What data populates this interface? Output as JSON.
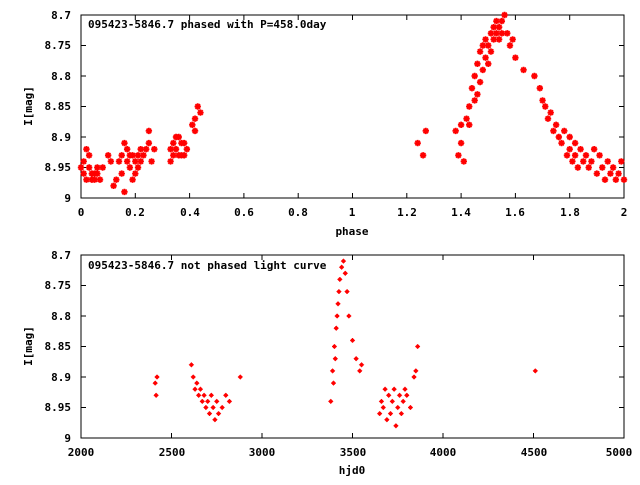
{
  "colors": {
    "points": "#ff0000",
    "axes": "#000000",
    "background": "#ffffff"
  },
  "chart_data": [
    {
      "type": "scatter",
      "title": "095423-5846.7 phased with P=458.0day",
      "xlabel": "phase",
      "ylabel": "I[mag]",
      "xlim": [
        0,
        2
      ],
      "ylim": [
        9,
        8.7
      ],
      "y_inverted": true,
      "grid": false,
      "legend": "none",
      "marker": "star",
      "xticks": [
        "0",
        "0.2",
        "0.4",
        "0.6",
        "0.8",
        "1",
        "1.2",
        "1.4",
        "1.6",
        "1.8",
        "2"
      ],
      "yticks": [
        "8.7",
        "8.75",
        "8.8",
        "8.85",
        "8.9",
        "8.95",
        "9"
      ],
      "x": [
        0.0,
        0.01,
        0.01,
        0.02,
        0.02,
        0.03,
        0.03,
        0.04,
        0.04,
        0.05,
        0.05,
        0.06,
        0.06,
        0.07,
        0.08,
        0.1,
        0.11,
        0.12,
        0.13,
        0.14,
        0.15,
        0.15,
        0.16,
        0.16,
        0.17,
        0.17,
        0.18,
        0.18,
        0.19,
        0.19,
        0.2,
        0.2,
        0.21,
        0.21,
        0.22,
        0.22,
        0.23,
        0.24,
        0.25,
        0.25,
        0.26,
        0.27,
        0.33,
        0.33,
        0.34,
        0.34,
        0.35,
        0.35,
        0.36,
        0.36,
        0.37,
        0.37,
        0.38,
        0.38,
        0.39,
        0.41,
        0.42,
        0.42,
        0.43,
        0.44,
        1.24,
        1.26,
        1.27,
        1.38,
        1.39,
        1.4,
        1.4,
        1.41,
        1.42,
        1.43,
        1.43,
        1.44,
        1.45,
        1.45,
        1.46,
        1.46,
        1.47,
        1.47,
        1.48,
        1.48,
        1.49,
        1.49,
        1.5,
        1.5,
        1.51,
        1.51,
        1.52,
        1.52,
        1.53,
        1.53,
        1.54,
        1.54,
        1.55,
        1.55,
        1.56,
        1.57,
        1.58,
        1.59,
        1.6,
        1.63,
        1.67,
        1.69,
        1.7,
        1.71,
        1.72,
        1.73,
        1.74,
        1.75,
        1.76,
        1.77,
        1.78,
        1.79,
        1.8,
        1.8,
        1.81,
        1.82,
        1.82,
        1.83,
        1.84,
        1.85,
        1.86,
        1.87,
        1.88,
        1.89,
        1.9,
        1.91,
        1.92,
        1.93,
        1.94,
        1.95,
        1.96,
        1.97,
        1.98,
        1.99,
        2.0
      ],
      "y": [
        8.95,
        8.94,
        8.96,
        8.92,
        8.97,
        8.93,
        8.95,
        8.97,
        8.96,
        8.96,
        8.97,
        8.95,
        8.96,
        8.97,
        8.95,
        8.93,
        8.94,
        8.98,
        8.97,
        8.94,
        8.93,
        8.96,
        8.91,
        8.99,
        8.92,
        8.94,
        8.93,
        8.95,
        8.97,
        8.93,
        8.94,
        8.96,
        8.93,
        8.95,
        8.92,
        8.94,
        8.93,
        8.92,
        8.89,
        8.91,
        8.94,
        8.92,
        8.94,
        8.92,
        8.93,
        8.91,
        8.92,
        8.9,
        8.93,
        8.9,
        8.91,
        8.93,
        8.93,
        8.91,
        8.92,
        8.88,
        8.89,
        8.87,
        8.85,
        8.86,
        8.91,
        8.93,
        8.89,
        8.89,
        8.93,
        8.88,
        8.91,
        8.94,
        8.87,
        8.88,
        8.85,
        8.82,
        8.84,
        8.8,
        8.83,
        8.78,
        8.81,
        8.76,
        8.79,
        8.75,
        8.77,
        8.74,
        8.78,
        8.75,
        8.73,
        8.76,
        8.72,
        8.74,
        8.73,
        8.71,
        8.74,
        8.72,
        8.73,
        8.71,
        8.7,
        8.73,
        8.75,
        8.74,
        8.77,
        8.79,
        8.8,
        8.82,
        8.84,
        8.85,
        8.87,
        8.86,
        8.89,
        8.88,
        8.9,
        8.91,
        8.89,
        8.93,
        8.9,
        8.92,
        8.94,
        8.91,
        8.93,
        8.95,
        8.92,
        8.94,
        8.93,
        8.95,
        8.94,
        8.92,
        8.96,
        8.93,
        8.95,
        8.97,
        8.94,
        8.96,
        8.95,
        8.97,
        8.96,
        8.94,
        8.97
      ]
    },
    {
      "type": "scatter",
      "title": "095423-5846.7 not phased light curve",
      "xlabel": "hjd0",
      "ylabel": "I[mag]",
      "xlim": [
        2000,
        5000
      ],
      "ylim": [
        9,
        8.7
      ],
      "y_inverted": true,
      "grid": false,
      "legend": "none",
      "marker": "diamond",
      "xticks": [
        "2000",
        "2500",
        "3000",
        "3500",
        "4000",
        "4500",
        "5000"
      ],
      "yticks": [
        "8.7",
        "8.75",
        "8.8",
        "8.85",
        "8.9",
        "8.95",
        "9"
      ],
      "x": [
        2410,
        2415,
        2420,
        2610,
        2620,
        2630,
        2640,
        2650,
        2660,
        2670,
        2680,
        2690,
        2700,
        2710,
        2720,
        2730,
        2740,
        2750,
        2760,
        2780,
        2800,
        2820,
        2880,
        3380,
        3390,
        3395,
        3400,
        3405,
        3410,
        3415,
        3420,
        3425,
        3430,
        3440,
        3450,
        3460,
        3470,
        3480,
        3500,
        3520,
        3540,
        3550,
        3650,
        3660,
        3670,
        3680,
        3690,
        3700,
        3710,
        3720,
        3730,
        3740,
        3750,
        3760,
        3770,
        3780,
        3790,
        3800,
        3820,
        3840,
        3850,
        3860,
        4510
      ],
      "y": [
        8.91,
        8.93,
        8.9,
        8.88,
        8.9,
        8.92,
        8.91,
        8.93,
        8.92,
        8.94,
        8.93,
        8.95,
        8.94,
        8.96,
        8.93,
        8.95,
        8.97,
        8.94,
        8.96,
        8.95,
        8.93,
        8.94,
        8.9,
        8.94,
        8.89,
        8.91,
        8.85,
        8.87,
        8.82,
        8.8,
        8.78,
        8.76,
        8.74,
        8.72,
        8.71,
        8.73,
        8.76,
        8.8,
        8.84,
        8.87,
        8.89,
        8.88,
        8.96,
        8.94,
        8.95,
        8.92,
        8.97,
        8.93,
        8.96,
        8.94,
        8.92,
        8.98,
        8.95,
        8.93,
        8.96,
        8.94,
        8.92,
        8.93,
        8.95,
        8.9,
        8.89,
        8.85,
        8.89
      ]
    }
  ]
}
